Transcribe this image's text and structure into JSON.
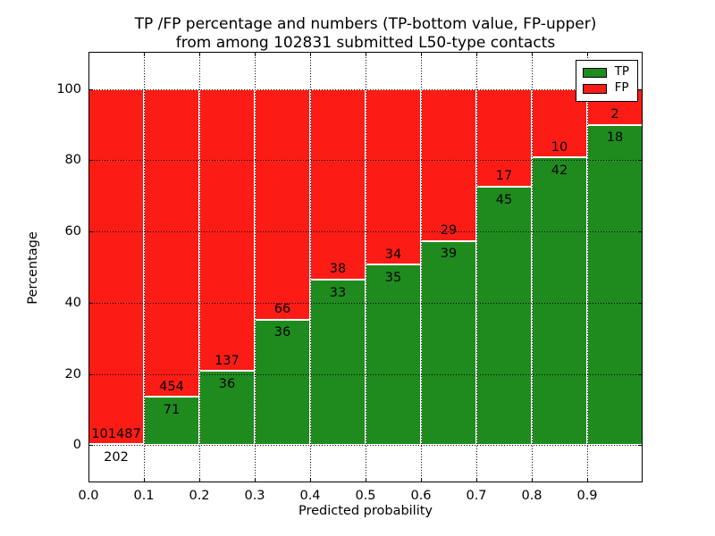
{
  "title": {
    "line1": "TP /FP percentage and numbers (TP-bottom value, FP-upper)",
    "line2": "from among 102831 submitted L50-type contacts"
  },
  "chart_data": {
    "type": "bar",
    "variant": "stacked-percentage-histogram",
    "title": "TP /FP percentage and numbers (TP-bottom value, FP-upper) from among 102831 submitted L50-type contacts",
    "total_contacts": 102831,
    "xlabel": "Predicted probability",
    "ylabel": "Percentage",
    "x_tick_labels": [
      "0.0",
      "0.1",
      "0.2",
      "0.3",
      "0.4",
      "0.5",
      "0.6",
      "0.7",
      "0.8",
      "0.9"
    ],
    "x_tick_values": [
      0.0,
      0.1,
      0.2,
      0.3,
      0.4,
      0.5,
      0.6,
      0.7,
      0.8,
      0.9
    ],
    "y_ticks": [
      0,
      20,
      40,
      60,
      80,
      100
    ],
    "xlim": [
      0.0,
      1.0
    ],
    "ylim": [
      -10.5,
      110.5
    ],
    "grid": true,
    "legend": {
      "position": "upper right",
      "entries": [
        {
          "label": "TP",
          "color": "#1f8b1f"
        },
        {
          "label": "FP",
          "color": "#fc1c16"
        }
      ]
    },
    "bins": [
      {
        "x_start": 0.0,
        "x_end": 0.1,
        "tp": 202,
        "fp": 101487
      },
      {
        "x_start": 0.1,
        "x_end": 0.2,
        "tp": 71,
        "fp": 454
      },
      {
        "x_start": 0.2,
        "x_end": 0.3,
        "tp": 36,
        "fp": 137
      },
      {
        "x_start": 0.3,
        "x_end": 0.4,
        "tp": 36,
        "fp": 66
      },
      {
        "x_start": 0.4,
        "x_end": 0.5,
        "tp": 33,
        "fp": 38
      },
      {
        "x_start": 0.5,
        "x_end": 0.6,
        "tp": 35,
        "fp": 34
      },
      {
        "x_start": 0.6,
        "x_end": 0.7,
        "tp": 39,
        "fp": 29
      },
      {
        "x_start": 0.7,
        "x_end": 0.8,
        "tp": 45,
        "fp": 17
      },
      {
        "x_start": 0.8,
        "x_end": 0.9,
        "tp": 42,
        "fp": 10
      },
      {
        "x_start": 0.9,
        "x_end": 1.0,
        "tp": 18,
        "fp": 2
      }
    ],
    "colors": {
      "tp": "#1f8b1f",
      "fp": "#fc1c16",
      "grid": "#000000",
      "bar_edge": "#ffffff"
    }
  }
}
